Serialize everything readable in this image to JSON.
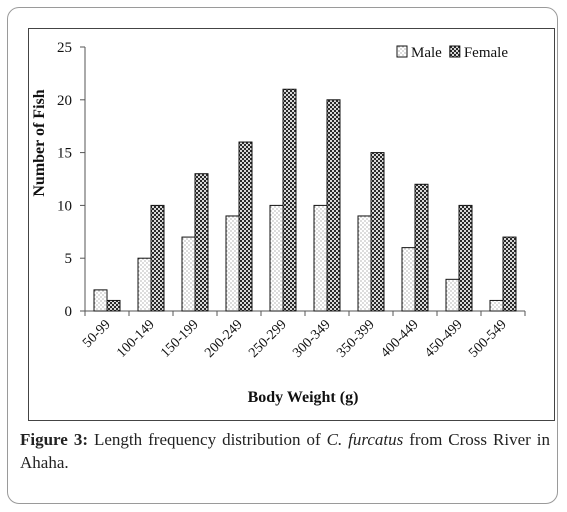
{
  "chart_data": {
    "type": "bar",
    "xlabel": "Body Weight (g)",
    "ylabel": "Number of Fish",
    "ylim": [
      0,
      25
    ],
    "yticks": [
      0,
      5,
      10,
      15,
      20,
      25
    ],
    "legend_position": "top-right",
    "grid": false,
    "categories": [
      "50-99",
      "100-149",
      "150-199",
      "200-249",
      "250-299",
      "300-349",
      "350-399",
      "400-449",
      "450-499",
      "500-549"
    ],
    "series": [
      {
        "name": "Male",
        "values": [
          2,
          5,
          7,
          9,
          10,
          10,
          9,
          6,
          3,
          1
        ]
      },
      {
        "name": "Female",
        "values": [
          1,
          10,
          13,
          16,
          21,
          20,
          15,
          12,
          10,
          7
        ]
      }
    ]
  },
  "caption": {
    "label": "Figure 3:",
    "text_before": " Length frequency distribution of ",
    "species": "C. furcatus",
    "text_after": " from Cross River in Ahaha."
  }
}
